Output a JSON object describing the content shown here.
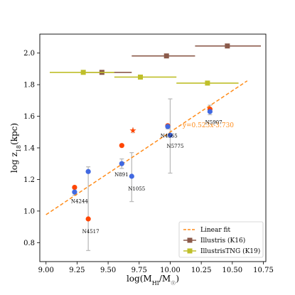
{
  "chart_data": {
    "type": "scatter",
    "xlabel_parts": {
      "main": "log(M",
      "sub": "HI",
      "mid": "/M",
      "sub2": "☉",
      "end": ")"
    },
    "ylabel_parts": {
      "main": "log z",
      "sub": "18",
      "end": "(kpc)"
    },
    "xlim": [
      8.95,
      10.77
    ],
    "ylim": [
      0.68,
      2.12
    ],
    "x_ticks": [
      9.0,
      9.25,
      9.5,
      9.75,
      10.0,
      10.25,
      10.5,
      10.75
    ],
    "x_tick_labels": [
      "9.00",
      "9.25",
      "9.50",
      "9.75",
      "10.00",
      "10.25",
      "10.50",
      "10.75"
    ],
    "y_ticks": [
      0.8,
      1.0,
      1.2,
      1.4,
      1.6,
      1.8,
      2.0
    ],
    "y_tick_labels": [
      "0.8",
      "1.0",
      "1.2",
      "1.4",
      "1.6",
      "1.8",
      "2.0"
    ],
    "grid": false,
    "fit": {
      "slope": 0.523,
      "intercept": -3.73,
      "x_range": [
        9.0,
        10.62
      ],
      "label": "y=0.523x-3.730",
      "color": "#ff8c1a"
    },
    "galaxies": [
      {
        "name": "N4244",
        "x": 9.23,
        "blue": 1.12,
        "red": 1.15,
        "err": [
          1.1,
          1.14
        ],
        "label_dx": 0.0,
        "label_dy": -0.06
      },
      {
        "name": "N4517",
        "x": 9.34,
        "blue": 1.25,
        "red": 0.95,
        "err": [
          0.75,
          1.28
        ],
        "label_dx": -0.02,
        "label_dy": -0.08
      },
      {
        "name": "N891",
        "x": 9.61,
        "blue": 1.3,
        "red": 1.415,
        "err": [
          1.27,
          1.33
        ],
        "label_dx": -0.03,
        "label_dy": -0.07
      },
      {
        "name": "N1055",
        "x": 9.69,
        "blue": 1.22,
        "red": null,
        "err": [
          1.06,
          1.37
        ],
        "label_dx": 0.0,
        "label_dy": -0.08
      },
      {
        "name": "N4565",
        "x": 9.98,
        "blue": 1.535,
        "red": 1.54,
        "err": [
          1.52,
          1.55
        ],
        "label_dx": -0.03,
        "label_dy": -0.06
      },
      {
        "name": "N5775",
        "x": 10.0,
        "blue": 1.48,
        "red": null,
        "err": [
          1.24,
          1.71
        ],
        "label_dx": 0.0,
        "label_dy": -0.07
      },
      {
        "name": "N5907",
        "x": 10.32,
        "blue": 1.63,
        "red": 1.645,
        "err": [
          1.61,
          1.67
        ],
        "label_dx": -0.01,
        "label_dy": -0.07
      }
    ],
    "star_marker": {
      "x": 9.7,
      "y": 1.51,
      "err": [
        1.49,
        1.53
      ]
    },
    "illustris_k16": [
      {
        "x": 9.45,
        "y": 1.878,
        "xerr": [
          9.3,
          9.69
        ]
      },
      {
        "x": 9.97,
        "y": 1.982,
        "xerr": [
          9.69,
          10.2
        ]
      },
      {
        "x": 10.46,
        "y": 2.045,
        "xerr": [
          10.2,
          10.73
        ]
      }
    ],
    "illustristng_k19": [
      {
        "x": 9.3,
        "y": 1.878,
        "xerr": [
          9.03,
          9.55
        ]
      },
      {
        "x": 9.76,
        "y": 1.848,
        "xerr": [
          9.55,
          10.05
        ]
      },
      {
        "x": 10.3,
        "y": 1.81,
        "xerr": [
          10.05,
          10.55
        ]
      }
    ],
    "colors": {
      "blue": "#4169e1",
      "red": "#ff4500",
      "illustris": "#8b5a4a",
      "illustristng": "#bfbf2a",
      "errorbar": "#bbbbbb"
    },
    "legend": {
      "placement": "lower-right",
      "entries": [
        {
          "label": "Linear fit",
          "style": "dashed-line",
          "color": "#ff8c1a"
        },
        {
          "label": "Illustris (K16)",
          "style": "square-errbar",
          "color": "#8b5a4a"
        },
        {
          "label": "IllustrisTNG (K19)",
          "style": "square-errbar",
          "color": "#bfbf2a"
        }
      ]
    }
  }
}
